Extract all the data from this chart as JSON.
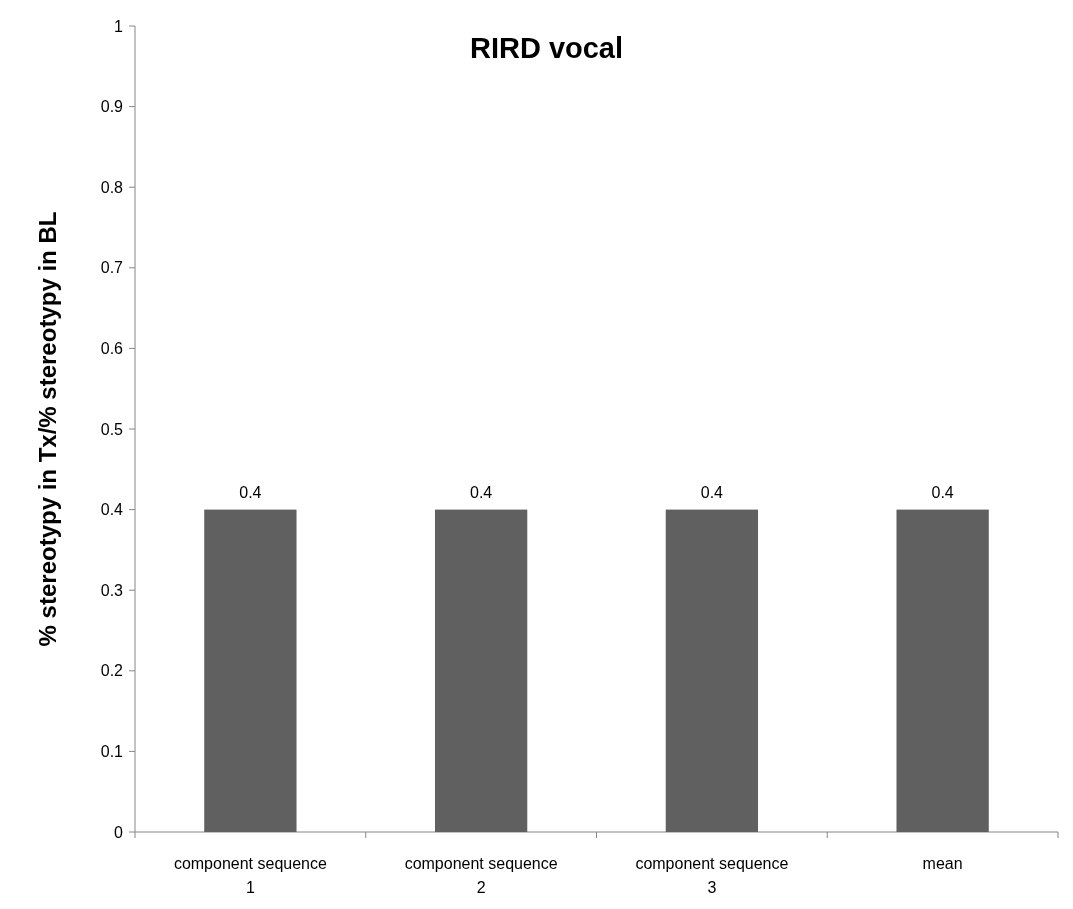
{
  "chart_data": {
    "type": "bar",
    "title": "RIRD vocal",
    "ylabel": "% stereotypy in Tx/% stereotypy in BL",
    "categories": [
      "component sequence 1",
      "component sequence 2",
      "component sequence 3",
      "mean"
    ],
    "values": [
      0.4,
      0.4,
      0.4,
      0.4
    ],
    "color": "#606060",
    "data_labels": true,
    "ylim": [
      0,
      1
    ],
    "yticks": [
      0,
      0.1,
      0.2,
      0.3,
      0.4,
      0.5,
      0.6,
      0.7,
      0.8,
      0.9,
      1
    ],
    "grid": false
  }
}
